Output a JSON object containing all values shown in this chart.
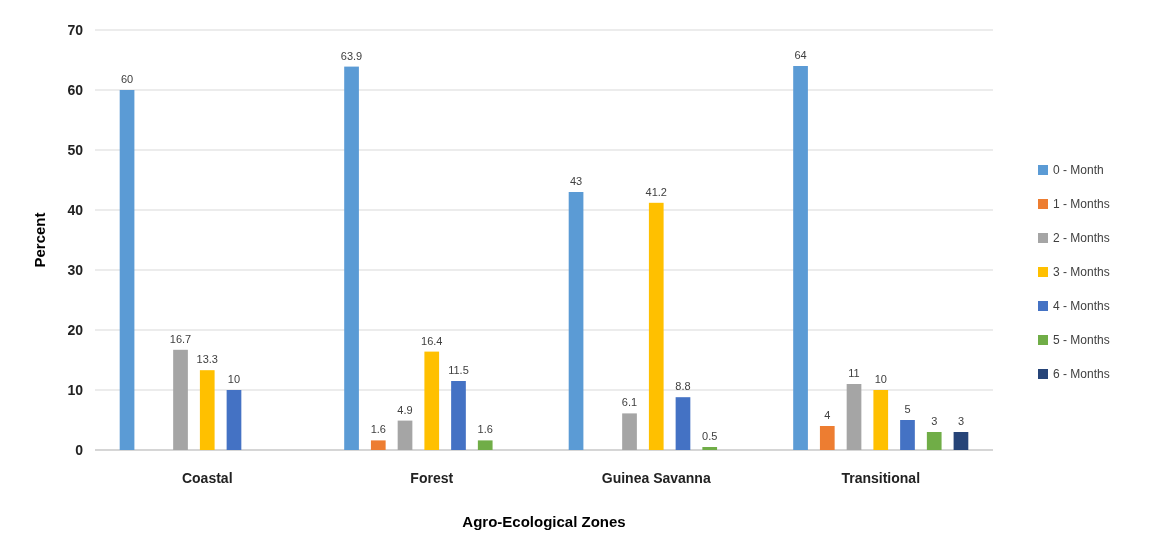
{
  "chart_data": {
    "type": "bar",
    "xlabel": "Agro-Ecological Zones",
    "ylabel": "Percent",
    "categories": [
      "Coastal",
      "Forest",
      "Guinea Savanna",
      "Transitional"
    ],
    "series": [
      {
        "name": "0 - Month",
        "color": "#5b9bd5",
        "values": [
          60,
          63.9,
          43,
          64
        ]
      },
      {
        "name": "1 - Months",
        "color": "#ed7d31",
        "values": [
          null,
          1.6,
          null,
          4
        ]
      },
      {
        "name": "2 - Months",
        "color": "#a5a5a5",
        "values": [
          16.7,
          4.9,
          6.1,
          11
        ]
      },
      {
        "name": "3 - Months",
        "color": "#ffc000",
        "values": [
          13.3,
          16.4,
          41.2,
          10
        ]
      },
      {
        "name": "4 - Months",
        "color": "#4472c4",
        "values": [
          10,
          11.5,
          8.8,
          5
        ]
      },
      {
        "name": "5 - Months",
        "color": "#70ad47",
        "values": [
          null,
          1.6,
          0.5,
          3
        ]
      },
      {
        "name": "6 - Months",
        "color": "#264478",
        "values": [
          null,
          null,
          null,
          3
        ]
      }
    ],
    "ylim": [
      0,
      70
    ],
    "yticks": [
      0,
      10,
      20,
      30,
      40,
      50,
      60,
      70
    ],
    "grid": "y",
    "legend": "right",
    "data_labels": true
  }
}
